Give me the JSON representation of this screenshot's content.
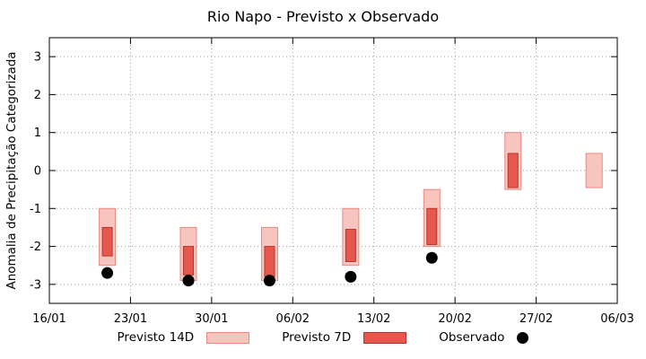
{
  "title": "Rio Napo - Previsto x Observado",
  "chart_data": {
    "type": "bar",
    "title": "Rio Napo - Previsto x Observado",
    "xlabel": "",
    "ylabel": "Anomalia de Precipitação Categorizada",
    "ylim": [
      -3.5,
      3.5
    ],
    "yticks": [
      -3,
      -2,
      -1,
      0,
      1,
      2,
      3
    ],
    "xtick_labels": [
      "16/01",
      "23/01",
      "30/01",
      "06/02",
      "13/02",
      "20/02",
      "27/02",
      "06/03"
    ],
    "xtick_days": [
      0,
      7,
      14,
      21,
      28,
      35,
      42,
      49
    ],
    "xlim_days": [
      0,
      49
    ],
    "grid": true,
    "legend_position": "bottom",
    "colors": {
      "previsto_14d_fill": "#f8c5be",
      "previsto_14d_border": "#e9897e",
      "previsto_7d_fill": "#e7574d",
      "previsto_7d_border": "#b23730",
      "observado": "#000000",
      "grid": "#9e9e9e",
      "axis": "#000000"
    },
    "series": [
      {
        "name": "Previsto 14D",
        "type": "range-bar",
        "points": [
          {
            "x": "21/01",
            "day": 5,
            "low": -2.5,
            "high": -1.0
          },
          {
            "x": "28/01",
            "day": 12,
            "low": -2.9,
            "high": -1.5
          },
          {
            "x": "04/02",
            "day": 19,
            "low": -2.9,
            "high": -1.5
          },
          {
            "x": "11/02",
            "day": 26,
            "low": -2.5,
            "high": -1.0
          },
          {
            "x": "18/02",
            "day": 33,
            "low": -2.0,
            "high": -0.5
          },
          {
            "x": "25/02",
            "day": 40,
            "low": -0.5,
            "high": 1.0
          },
          {
            "x": "04/03",
            "day": 47,
            "low": -0.45,
            "high": 0.45
          }
        ]
      },
      {
        "name": "Previsto 7D",
        "type": "range-bar",
        "points": [
          {
            "x": "21/01",
            "day": 5,
            "low": -2.25,
            "high": -1.5
          },
          {
            "x": "28/01",
            "day": 12,
            "low": -2.75,
            "high": -2.0
          },
          {
            "x": "04/02",
            "day": 19,
            "low": -2.8,
            "high": -2.0
          },
          {
            "x": "11/02",
            "day": 26,
            "low": -2.4,
            "high": -1.55
          },
          {
            "x": "18/02",
            "day": 33,
            "low": -1.95,
            "high": -1.0
          },
          {
            "x": "25/02",
            "day": 40,
            "low": -0.45,
            "high": 0.45
          }
        ]
      },
      {
        "name": "Observado",
        "type": "scatter",
        "points": [
          {
            "x": "21/01",
            "day": 5,
            "value": -2.7
          },
          {
            "x": "28/01",
            "day": 12,
            "value": -2.9
          },
          {
            "x": "04/02",
            "day": 19,
            "value": -2.9
          },
          {
            "x": "11/02",
            "day": 26,
            "value": -2.8
          },
          {
            "x": "18/02",
            "day": 33,
            "value": -2.3
          }
        ]
      }
    ]
  }
}
